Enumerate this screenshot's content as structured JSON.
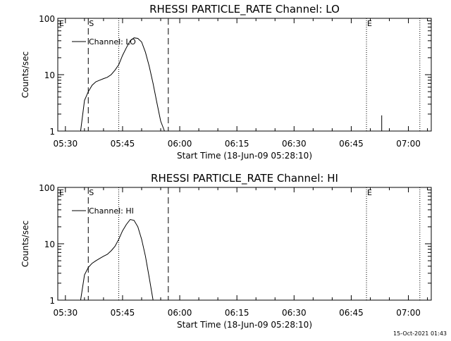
{
  "footer": {
    "timestamp": "15-Oct-2021 01:43"
  },
  "chart_data": [
    {
      "type": "line",
      "title": "RHESSI PARTICLE_RATE Channel: LO",
      "xlabel": "Start Time (18-Jun-09 05:28:10)",
      "ylabel": "Counts/sec",
      "y_scale": "log",
      "xlim": [
        "05:28",
        "07:06"
      ],
      "ylim": [
        1,
        100
      ],
      "x_ticks": [
        "05:30",
        "05:45",
        "06:00",
        "06:15",
        "06:30",
        "06:45",
        "07:00"
      ],
      "y_ticks": [
        "1",
        "10",
        "100"
      ],
      "legend": {
        "position": "top-left",
        "entries": [
          "Channel: LO"
        ]
      },
      "markers": [
        {
          "label": "E",
          "time": "05:28",
          "style": "none"
        },
        {
          "label": "S",
          "time": "05:36",
          "style": "dashed"
        },
        {
          "label": "",
          "time": "05:44",
          "style": "dotted"
        },
        {
          "label": "",
          "time": "05:57",
          "style": "dashed"
        },
        {
          "label": "E",
          "time": "06:49",
          "style": "dotted"
        },
        {
          "label": "",
          "time": "07:03",
          "style": "dotted"
        }
      ],
      "series": [
        {
          "name": "Channel: LO",
          "x": [
            "05:34",
            "05:35",
            "05:36",
            "05:37",
            "05:38",
            "05:39",
            "05:40",
            "05:41",
            "05:42",
            "05:43",
            "05:44",
            "05:45",
            "05:46",
            "05:47",
            "05:48",
            "05:49",
            "05:50",
            "05:51",
            "05:52",
            "05:53",
            "05:54",
            "05:55",
            "05:56"
          ],
          "y": [
            1,
            3.5,
            5.0,
            6.5,
            7.5,
            8.0,
            8.5,
            9.0,
            10.0,
            12.0,
            15.0,
            22.0,
            30.0,
            40.0,
            45.0,
            44.0,
            38.0,
            25.0,
            14.0,
            7.0,
            3.2,
            1.5,
            1
          ]
        },
        {
          "name": "",
          "x": [
            "06:53",
            "06:53",
            "06:53"
          ],
          "y": [
            1,
            1.9,
            1
          ]
        }
      ]
    },
    {
      "type": "line",
      "title": "RHESSI PARTICLE_RATE Channel: HI",
      "xlabel": "Start Time (18-Jun-09 05:28:10)",
      "ylabel": "Counts/sec",
      "y_scale": "log",
      "xlim": [
        "05:28",
        "07:06"
      ],
      "ylim": [
        1,
        100
      ],
      "x_ticks": [
        "05:30",
        "05:45",
        "06:00",
        "06:15",
        "06:30",
        "06:45",
        "07:00"
      ],
      "y_ticks": [
        "1",
        "10",
        "100"
      ],
      "legend": {
        "position": "top-left",
        "entries": [
          "Channel: HI"
        ]
      },
      "markers": [
        {
          "label": "E",
          "time": "05:28",
          "style": "none"
        },
        {
          "label": "S",
          "time": "05:36",
          "style": "dashed"
        },
        {
          "label": "",
          "time": "05:44",
          "style": "dotted"
        },
        {
          "label": "",
          "time": "05:57",
          "style": "dashed"
        },
        {
          "label": "E",
          "time": "06:49",
          "style": "dotted"
        },
        {
          "label": "",
          "time": "07:03",
          "style": "dotted"
        }
      ],
      "series": [
        {
          "name": "Channel: HI",
          "x": [
            "05:34",
            "05:35",
            "05:36",
            "05:37",
            "05:38",
            "05:39",
            "05:40",
            "05:41",
            "05:42",
            "05:43",
            "05:44",
            "05:45",
            "05:46",
            "05:47",
            "05:48",
            "05:49",
            "05:50",
            "05:51",
            "05:52",
            "05:53"
          ],
          "y": [
            1,
            2.8,
            3.8,
            4.5,
            5.0,
            5.5,
            6.0,
            6.5,
            7.5,
            9.0,
            12.0,
            17.0,
            22.0,
            27.0,
            26.0,
            20.0,
            12.0,
            6.0,
            2.5,
            1
          ]
        }
      ]
    }
  ]
}
